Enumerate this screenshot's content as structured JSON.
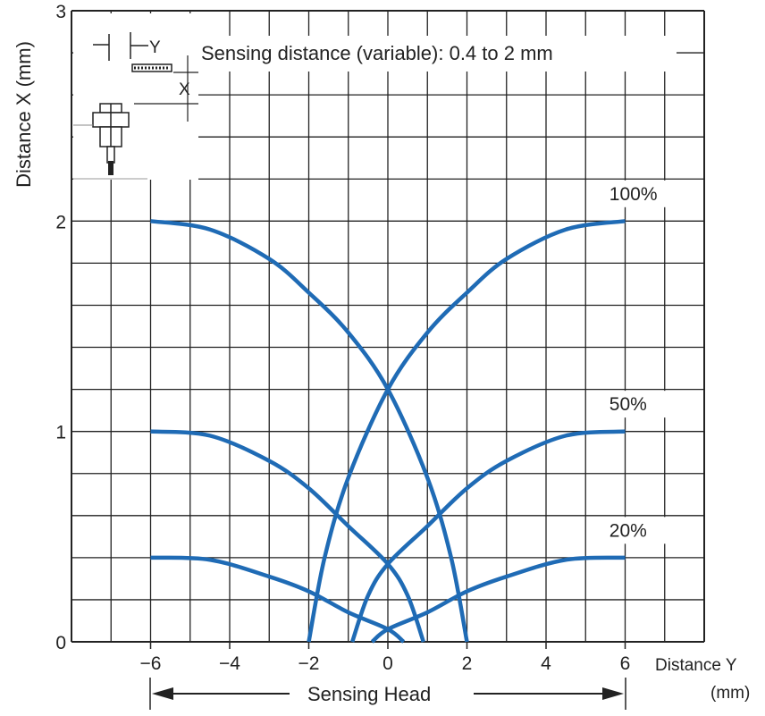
{
  "chart_data": {
    "type": "line",
    "title": "",
    "annotation": "Sensing distance (variable): 0.4 to 2 mm",
    "xlabel": "Distance Y",
    "xlabel_unit": "(mm)",
    "ylabel": "Distance X (mm)",
    "x_tick_labels": [
      "−6",
      "−4",
      "−2",
      "0",
      "2",
      "4",
      "6"
    ],
    "x_tick_values": [
      -6,
      -4,
      -2,
      0,
      2,
      4,
      6
    ],
    "y_tick_labels": [
      "0",
      "1",
      "2",
      "3"
    ],
    "y_tick_values": [
      0,
      1,
      2,
      3
    ],
    "xlim": [
      -8,
      8
    ],
    "ylim": [
      0,
      3
    ],
    "grid": true,
    "sensing_head_label": "Sensing Head",
    "sensing_head_range": [
      -6,
      6
    ],
    "series_color": "#1f6bb5",
    "series": [
      {
        "name": "100%",
        "points": [
          [
            -6,
            2.0
          ],
          [
            -4.5,
            1.96
          ],
          [
            -3,
            1.82
          ],
          [
            -2,
            1.66
          ],
          [
            -1,
            1.47
          ],
          [
            0,
            1.2
          ],
          [
            1,
            0.78
          ],
          [
            1.6,
            0.4
          ],
          [
            2,
            0.0
          ]
        ]
      },
      {
        "name": "100%",
        "points": [
          [
            6,
            2.0
          ],
          [
            4.5,
            1.96
          ],
          [
            3,
            1.82
          ],
          [
            2,
            1.66
          ],
          [
            1,
            1.47
          ],
          [
            0,
            1.2
          ],
          [
            -1,
            0.78
          ],
          [
            -1.6,
            0.4
          ],
          [
            -2,
            0.0
          ]
        ]
      },
      {
        "name": "50%",
        "points": [
          [
            -6,
            1.0
          ],
          [
            -4.5,
            0.98
          ],
          [
            -3,
            0.86
          ],
          [
            -2,
            0.73
          ],
          [
            -1,
            0.55
          ],
          [
            0,
            0.37
          ],
          [
            0.5,
            0.22
          ],
          [
            0.9,
            0.0
          ]
        ]
      },
      {
        "name": "50%",
        "points": [
          [
            6,
            1.0
          ],
          [
            4.5,
            0.98
          ],
          [
            3,
            0.86
          ],
          [
            2,
            0.73
          ],
          [
            1,
            0.55
          ],
          [
            0,
            0.37
          ],
          [
            -0.5,
            0.22
          ],
          [
            -0.9,
            0.0
          ]
        ]
      },
      {
        "name": "20%",
        "points": [
          [
            -6,
            0.4
          ],
          [
            -4.5,
            0.39
          ],
          [
            -3,
            0.31
          ],
          [
            -2,
            0.24
          ],
          [
            -1,
            0.14
          ],
          [
            0,
            0.06
          ],
          [
            0.4,
            0.0
          ]
        ]
      },
      {
        "name": "20%",
        "points": [
          [
            6,
            0.4
          ],
          [
            4.5,
            0.39
          ],
          [
            3,
            0.31
          ],
          [
            2,
            0.24
          ],
          [
            1,
            0.14
          ],
          [
            0,
            0.06
          ],
          [
            -0.4,
            0.0
          ]
        ]
      }
    ],
    "series_labels": [
      {
        "text": "100%",
        "x": 5.6,
        "y": 2.1
      },
      {
        "text": "50%",
        "x": 5.6,
        "y": 1.1
      },
      {
        "text": "20%",
        "x": 5.6,
        "y": 0.5
      }
    ],
    "diagram_labels": {
      "y": "Y",
      "x": "X"
    }
  }
}
